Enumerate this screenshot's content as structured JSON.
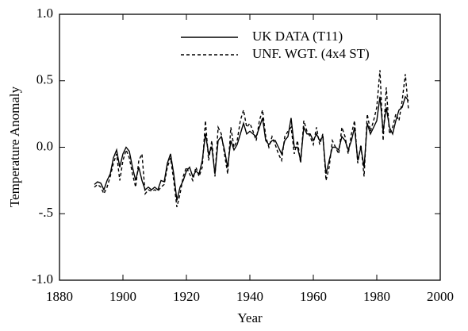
{
  "chart_data": {
    "type": "line",
    "xlabel": "Year",
    "ylabel": "Temperature Anomaly",
    "x": [
      1891,
      1892,
      1893,
      1894,
      1895,
      1896,
      1897,
      1898,
      1899,
      1900,
      1901,
      1902,
      1903,
      1904,
      1905,
      1906,
      1907,
      1908,
      1909,
      1910,
      1911,
      1912,
      1913,
      1914,
      1915,
      1916,
      1917,
      1918,
      1919,
      1920,
      1921,
      1922,
      1923,
      1924,
      1925,
      1926,
      1927,
      1928,
      1929,
      1930,
      1931,
      1932,
      1933,
      1934,
      1935,
      1936,
      1937,
      1938,
      1939,
      1940,
      1941,
      1942,
      1943,
      1944,
      1945,
      1946,
      1947,
      1948,
      1949,
      1950,
      1951,
      1952,
      1953,
      1954,
      1955,
      1956,
      1957,
      1958,
      1959,
      1960,
      1961,
      1962,
      1963,
      1964,
      1965,
      1966,
      1967,
      1968,
      1969,
      1970,
      1971,
      1972,
      1973,
      1974,
      1975,
      1976,
      1977,
      1978,
      1979,
      1980,
      1981,
      1982,
      1983,
      1984,
      1985,
      1986,
      1987,
      1988,
      1989,
      1990
    ],
    "series": [
      {
        "name": "UK DATA (T11)",
        "color": "#000000",
        "dash": false,
        "values": [
          -0.28,
          -0.26,
          -0.27,
          -0.32,
          -0.25,
          -0.2,
          -0.08,
          -0.02,
          -0.15,
          -0.05,
          0.0,
          -0.03,
          -0.15,
          -0.25,
          -0.15,
          -0.25,
          -0.32,
          -0.3,
          -0.32,
          -0.3,
          -0.32,
          -0.25,
          -0.26,
          -0.12,
          -0.05,
          -0.2,
          -0.4,
          -0.3,
          -0.25,
          -0.18,
          -0.15,
          -0.22,
          -0.18,
          -0.2,
          -0.1,
          0.1,
          -0.05,
          0.0,
          -0.2,
          0.05,
          0.08,
          -0.02,
          -0.15,
          0.05,
          -0.02,
          0.02,
          0.1,
          0.18,
          0.1,
          0.12,
          0.1,
          0.08,
          0.15,
          0.22,
          0.05,
          0.02,
          0.05,
          0.05,
          0.0,
          -0.05,
          0.05,
          0.08,
          0.22,
          0.0,
          0.0,
          -0.1,
          0.15,
          0.1,
          0.1,
          0.05,
          0.1,
          0.05,
          0.08,
          -0.2,
          -0.1,
          0.0,
          0.0,
          -0.02,
          0.08,
          0.05,
          -0.02,
          0.05,
          0.15,
          -0.1,
          0.0,
          -0.15,
          0.18,
          0.1,
          0.15,
          0.2,
          0.38,
          0.12,
          0.3,
          0.15,
          0.1,
          0.2,
          0.28,
          0.3,
          0.38,
          0.35
        ]
      },
      {
        "name": "UNF. WGT. (4x4 ST)",
        "color": "#000000",
        "dash": true,
        "values": [
          -0.3,
          -0.28,
          -0.3,
          -0.35,
          -0.3,
          -0.22,
          -0.12,
          -0.05,
          -0.25,
          -0.1,
          -0.02,
          -0.08,
          -0.2,
          -0.3,
          -0.1,
          -0.05,
          -0.35,
          -0.32,
          -0.33,
          -0.32,
          -0.33,
          -0.3,
          -0.28,
          -0.15,
          -0.08,
          -0.25,
          -0.45,
          -0.35,
          -0.22,
          -0.15,
          -0.2,
          -0.25,
          -0.15,
          -0.22,
          -0.15,
          0.2,
          -0.1,
          0.05,
          -0.22,
          0.15,
          0.1,
          -0.05,
          -0.2,
          0.15,
          0.0,
          0.05,
          0.2,
          0.28,
          0.15,
          0.18,
          0.12,
          0.05,
          0.2,
          0.28,
          0.08,
          0.0,
          0.08,
          0.02,
          -0.05,
          -0.1,
          0.08,
          0.12,
          0.15,
          -0.05,
          0.05,
          -0.12,
          0.2,
          0.12,
          0.08,
          0.02,
          0.15,
          0.02,
          0.1,
          -0.25,
          -0.15,
          0.05,
          0.0,
          -0.05,
          0.15,
          0.08,
          -0.05,
          0.1,
          0.2,
          -0.12,
          0.02,
          -0.22,
          0.25,
          0.12,
          0.2,
          0.3,
          0.58,
          0.05,
          0.45,
          0.1,
          0.15,
          0.25,
          0.2,
          0.35,
          0.55,
          0.28
        ]
      }
    ],
    "xlim": [
      1880,
      2000
    ],
    "xticks": [
      1880,
      1900,
      1920,
      1940,
      1960,
      1980,
      2000
    ],
    "ylim": [
      -1,
      1
    ],
    "yticks": [
      {
        "value": -1,
        "label": "-1.0"
      },
      {
        "value": -0.5,
        "label": "-.5"
      },
      {
        "value": 0,
        "label": "0.0"
      },
      0.5,
      {
        "value": 1,
        "label": "1.0"
      }
    ],
    "legend": "upper right"
  }
}
